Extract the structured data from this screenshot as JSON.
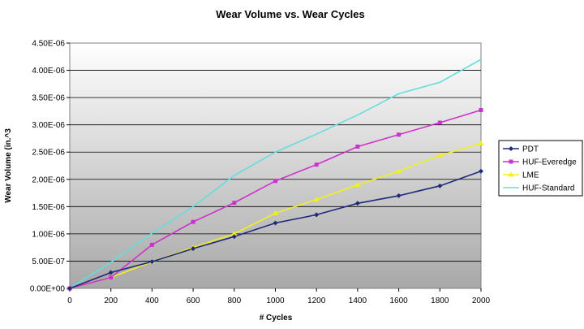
{
  "chart_data": {
    "type": "line",
    "title": "Wear Volume vs. Wear Cycles",
    "xlabel": "# Cycles",
    "ylabel": "Wear Volume (in.^3",
    "x": [
      0,
      200,
      400,
      600,
      800,
      1000,
      1200,
      1400,
      1600,
      1800,
      2000
    ],
    "xlim": [
      0,
      2000
    ],
    "ylim": [
      0,
      4.5e-06
    ],
    "xticks": [
      0,
      200,
      400,
      600,
      800,
      1000,
      1200,
      1400,
      1600,
      1800,
      2000
    ],
    "yticks": [
      0,
      5e-07,
      1e-06,
      1.5e-06,
      2e-06,
      2.5e-06,
      3e-06,
      3.5e-06,
      4e-06,
      4.5e-06
    ],
    "ytick_labels": [
      "0.00E+00",
      "5.00E-07",
      "1.00E-06",
      "1.50E-06",
      "2.00E-06",
      "2.50E-06",
      "3.00E-06",
      "3.50E-06",
      "4.00E-06",
      "4.50E-06"
    ],
    "grid": "horizontal",
    "legend_position": "right",
    "series": [
      {
        "name": "PDT",
        "color": "#1f2a7a",
        "marker": "diamond",
        "values": [
          0,
          2.9e-07,
          4.9e-07,
          7.3e-07,
          9.5e-07,
          1.2e-06,
          1.35e-06,
          1.56e-06,
          1.7e-06,
          1.88e-06,
          2.15e-06
        ]
      },
      {
        "name": "HUF-Everedge",
        "color": "#cc33cc",
        "marker": "square",
        "values": [
          0,
          2e-07,
          8e-07,
          1.22e-06,
          1.57e-06,
          1.97e-06,
          2.27e-06,
          2.6e-06,
          2.82e-06,
          3.04e-06,
          3.27e-06
        ]
      },
      {
        "name": "LME",
        "color": "#f0f020",
        "marker": "triangle",
        "values": [
          0,
          2e-07,
          4.9e-07,
          7.5e-07,
          1e-06,
          1.38e-06,
          1.63e-06,
          1.9e-06,
          2.15e-06,
          2.44e-06,
          2.66e-06
        ]
      },
      {
        "name": "HUF-Standard",
        "color": "#66dddd",
        "marker": "none",
        "values": [
          0,
          4.8e-07,
          1.01e-06,
          1.5e-06,
          2.07e-06,
          2.5e-06,
          2.83e-06,
          3.18e-06,
          3.57e-06,
          3.78e-06,
          4.2e-06
        ]
      }
    ]
  }
}
